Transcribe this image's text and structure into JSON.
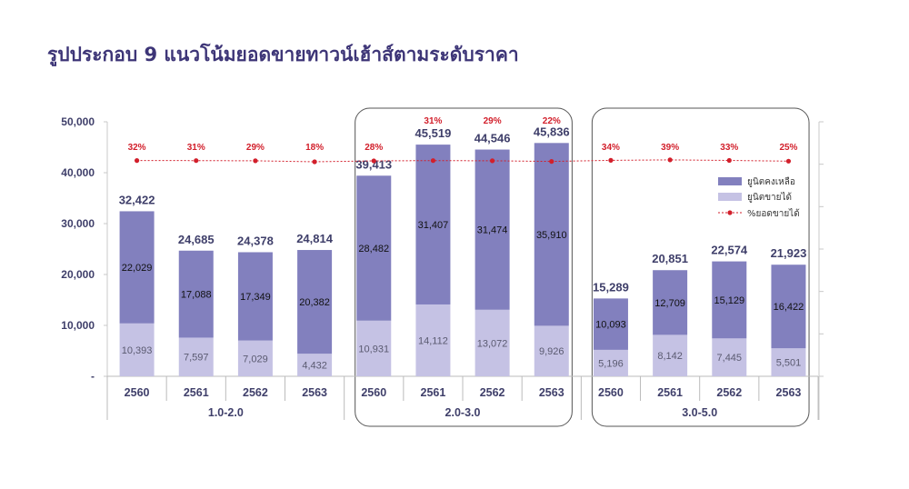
{
  "title": "รูปประกอบ 9 แนวโน้มยอดขายทาวน์เฮ้าส์ตามระดับราคา",
  "chart_data": {
    "type": "bar",
    "stacked": true,
    "groups": [
      {
        "label": "1.0-2.0",
        "years": [
          "2560",
          "2561",
          "2562",
          "2563"
        ],
        "highlighted": false
      },
      {
        "label": "2.0-3.0",
        "years": [
          "2560",
          "2561",
          "2562",
          "2563"
        ],
        "highlighted": true
      },
      {
        "label": "3.0-5.0",
        "years": [
          "2560",
          "2561",
          "2562",
          "2563"
        ],
        "highlighted": true
      }
    ],
    "series": [
      {
        "name": "ยูนิตขายได้",
        "color": "#c5c2e4",
        "values": [
          10393,
          7597,
          7029,
          4432,
          10931,
          14112,
          13072,
          9926,
          5196,
          8142,
          7445,
          5501
        ]
      },
      {
        "name": "ยูนิตคงเหลือ",
        "color": "#8280be",
        "values": [
          22029,
          17088,
          17349,
          20382,
          28482,
          31407,
          31474,
          35910,
          10093,
          12709,
          15129,
          16422
        ]
      }
    ],
    "totals": [
      32422,
      24685,
      24378,
      24814,
      39413,
      45519,
      44546,
      45836,
      15289,
      20851,
      22574,
      21923
    ],
    "line": {
      "name": "%ยอดขายได้",
      "color": "#d21f2b",
      "values": [
        32,
        31,
        29,
        18,
        28,
        31,
        29,
        22,
        34,
        39,
        33,
        25
      ]
    },
    "y_ticks": [
      "-",
      "10,000",
      "20,000",
      "30,000",
      "40,000",
      "50,000"
    ],
    "ylim": [
      0,
      50000
    ],
    "legend_position": "right",
    "grid": false
  }
}
